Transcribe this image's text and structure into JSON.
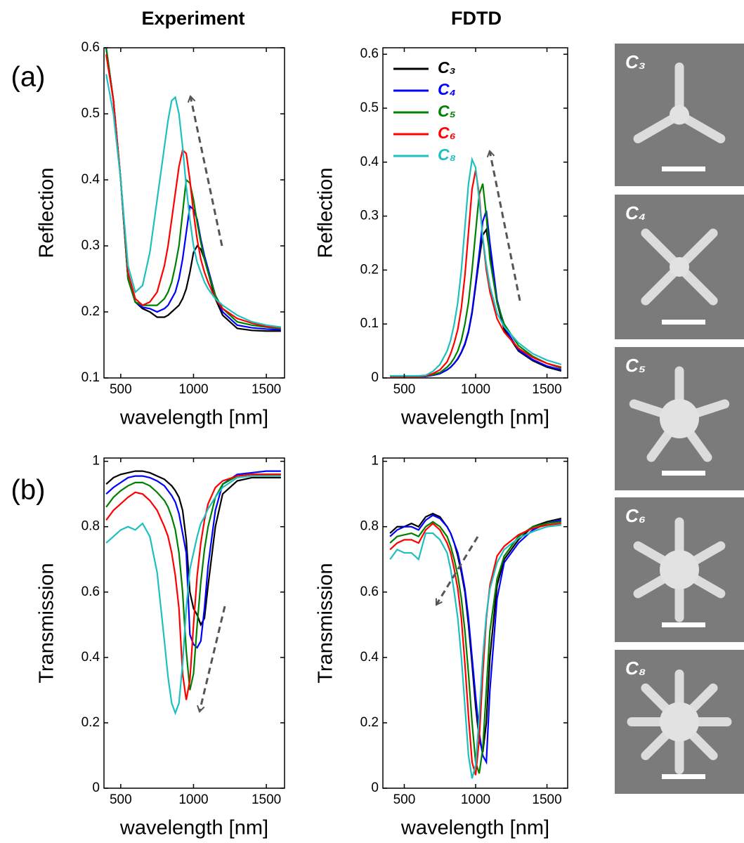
{
  "panel_labels": [
    "(a)",
    "(b)"
  ],
  "images": [
    {
      "label": "C₃"
    },
    {
      "label": "C₄"
    },
    {
      "label": "C₅"
    },
    {
      "label": "C₆"
    },
    {
      "label": "C₈"
    }
  ],
  "chart_data": [
    {
      "type": "line",
      "title": "Experiment",
      "ylabel": "Reflection",
      "xlabel": "wavelength  [nm]",
      "xlim": [
        385,
        1625
      ],
      "xticks": [
        500,
        1000,
        1500
      ],
      "ylim": [
        0.1,
        0.6
      ],
      "yticks": [
        0.1,
        0.2,
        0.3,
        0.4,
        0.5,
        0.6
      ],
      "x": [
        400,
        450,
        500,
        550,
        600,
        650,
        700,
        750,
        800,
        825,
        850,
        875,
        900,
        925,
        950,
        975,
        1000,
        1025,
        1050,
        1075,
        1100,
        1150,
        1200,
        1300,
        1400,
        1500,
        1600
      ],
      "series": [
        {
          "name": "C₃",
          "color": "#000000",
          "values": [
            0.6,
            0.52,
            0.4,
            0.25,
            0.215,
            0.205,
            0.2,
            0.192,
            0.192,
            0.195,
            0.2,
            0.205,
            0.21,
            0.22,
            0.235,
            0.26,
            0.29,
            0.3,
            0.295,
            0.28,
            0.26,
            0.22,
            0.195,
            0.175,
            0.172,
            0.171,
            0.171
          ]
        },
        {
          "name": "C₄",
          "color": "#0000ff",
          "values": [
            0.6,
            0.52,
            0.4,
            0.25,
            0.215,
            0.207,
            0.205,
            0.2,
            0.205,
            0.21,
            0.22,
            0.23,
            0.25,
            0.28,
            0.32,
            0.36,
            0.355,
            0.34,
            0.31,
            0.285,
            0.265,
            0.225,
            0.2,
            0.18,
            0.176,
            0.174,
            0.173
          ]
        },
        {
          "name": "C₅",
          "color": "#008000",
          "values": [
            0.6,
            0.52,
            0.4,
            0.25,
            0.215,
            0.21,
            0.21,
            0.21,
            0.22,
            0.23,
            0.245,
            0.27,
            0.3,
            0.35,
            0.4,
            0.395,
            0.37,
            0.335,
            0.305,
            0.28,
            0.26,
            0.225,
            0.205,
            0.185,
            0.18,
            0.177,
            0.175
          ]
        },
        {
          "name": "C₆",
          "color": "#ff0000",
          "values": [
            0.59,
            0.52,
            0.4,
            0.26,
            0.22,
            0.21,
            0.215,
            0.23,
            0.27,
            0.3,
            0.34,
            0.38,
            0.42,
            0.445,
            0.44,
            0.4,
            0.35,
            0.31,
            0.28,
            0.26,
            0.245,
            0.22,
            0.205,
            0.19,
            0.183,
            0.178,
            0.176
          ]
        },
        {
          "name": "C₈",
          "color": "#1ebfbf",
          "values": [
            0.56,
            0.5,
            0.4,
            0.27,
            0.23,
            0.24,
            0.29,
            0.37,
            0.45,
            0.49,
            0.52,
            0.525,
            0.5,
            0.45,
            0.39,
            0.34,
            0.3,
            0.275,
            0.26,
            0.245,
            0.235,
            0.22,
            0.21,
            0.195,
            0.185,
            0.18,
            0.177
          ]
        }
      ]
    },
    {
      "type": "line",
      "title": "FDTD",
      "ylabel": "Reflection",
      "xlabel": "wavelength  [nm]",
      "legend": "upper left",
      "xlim": [
        350,
        1645
      ],
      "xticks": [
        500,
        1000,
        1500
      ],
      "ylim": [
        0,
        0.612
      ],
      "yticks": [
        0,
        0.1,
        0.2,
        0.3,
        0.4,
        0.5,
        0.6
      ],
      "x": [
        400,
        450,
        500,
        550,
        600,
        650,
        700,
        750,
        800,
        825,
        850,
        875,
        900,
        925,
        950,
        975,
        1000,
        1025,
        1050,
        1075,
        1100,
        1150,
        1200,
        1300,
        1400,
        1500,
        1600
      ],
      "series": [
        {
          "name": "C₃",
          "color": "#000000",
          "values": [
            0.003,
            0.003,
            0.003,
            0.003,
            0.003,
            0.003,
            0.005,
            0.008,
            0.015,
            0.02,
            0.027,
            0.035,
            0.047,
            0.062,
            0.085,
            0.12,
            0.17,
            0.22,
            0.265,
            0.275,
            0.23,
            0.14,
            0.09,
            0.05,
            0.032,
            0.02,
            0.013
          ]
        },
        {
          "name": "C₄",
          "color": "#0000ff",
          "values": [
            0.003,
            0.003,
            0.003,
            0.003,
            0.003,
            0.003,
            0.005,
            0.008,
            0.015,
            0.02,
            0.027,
            0.036,
            0.048,
            0.064,
            0.087,
            0.123,
            0.175,
            0.23,
            0.29,
            0.31,
            0.25,
            0.145,
            0.095,
            0.052,
            0.034,
            0.022,
            0.015
          ]
        },
        {
          "name": "C₅",
          "color": "#008000",
          "values": [
            0.003,
            0.003,
            0.003,
            0.003,
            0.003,
            0.004,
            0.006,
            0.01,
            0.02,
            0.027,
            0.037,
            0.05,
            0.07,
            0.1,
            0.14,
            0.2,
            0.27,
            0.34,
            0.36,
            0.3,
            0.22,
            0.14,
            0.1,
            0.06,
            0.04,
            0.027,
            0.018
          ]
        },
        {
          "name": "C₆",
          "color": "#ff0000",
          "values": [
            0.003,
            0.003,
            0.003,
            0.003,
            0.003,
            0.004,
            0.008,
            0.015,
            0.03,
            0.045,
            0.065,
            0.09,
            0.13,
            0.19,
            0.27,
            0.35,
            0.385,
            0.34,
            0.26,
            0.2,
            0.16,
            0.11,
            0.085,
            0.055,
            0.038,
            0.027,
            0.02
          ]
        },
        {
          "name": "C₈",
          "color": "#1ebfbf",
          "values": [
            0.004,
            0.004,
            0.004,
            0.004,
            0.004,
            0.005,
            0.012,
            0.025,
            0.05,
            0.07,
            0.1,
            0.14,
            0.2,
            0.28,
            0.36,
            0.405,
            0.39,
            0.33,
            0.26,
            0.21,
            0.17,
            0.12,
            0.095,
            0.065,
            0.045,
            0.033,
            0.025
          ]
        }
      ]
    },
    {
      "type": "line",
      "ylabel": "Transmission",
      "xlabel": "wavelength  [nm]",
      "xlim": [
        385,
        1625
      ],
      "xticks": [
        500,
        1000,
        1500
      ],
      "ylim": [
        0,
        1.01
      ],
      "yticks": [
        0,
        0.2,
        0.4,
        0.6,
        0.8,
        1
      ],
      "x": [
        400,
        450,
        500,
        550,
        600,
        650,
        700,
        750,
        800,
        825,
        850,
        875,
        900,
        925,
        950,
        975,
        1000,
        1025,
        1050,
        1075,
        1100,
        1150,
        1200,
        1300,
        1400,
        1500,
        1600
      ],
      "series": [
        {
          "name": "C₃",
          "color": "#000000",
          "values": [
            0.93,
            0.95,
            0.96,
            0.965,
            0.97,
            0.97,
            0.965,
            0.955,
            0.945,
            0.935,
            0.925,
            0.91,
            0.89,
            0.85,
            0.76,
            0.6,
            0.55,
            0.53,
            0.5,
            0.52,
            0.62,
            0.8,
            0.9,
            0.94,
            0.95,
            0.95,
            0.95
          ]
        },
        {
          "name": "C₄",
          "color": "#0000ff",
          "values": [
            0.9,
            0.92,
            0.935,
            0.95,
            0.955,
            0.955,
            0.95,
            0.94,
            0.925,
            0.91,
            0.895,
            0.875,
            0.84,
            0.78,
            0.72,
            0.47,
            0.44,
            0.43,
            0.45,
            0.55,
            0.68,
            0.85,
            0.93,
            0.96,
            0.965,
            0.97,
            0.97
          ]
        },
        {
          "name": "C₅",
          "color": "#008000",
          "values": [
            0.86,
            0.89,
            0.91,
            0.925,
            0.935,
            0.935,
            0.925,
            0.905,
            0.88,
            0.86,
            0.83,
            0.79,
            0.72,
            0.6,
            0.42,
            0.3,
            0.35,
            0.5,
            0.63,
            0.73,
            0.8,
            0.89,
            0.93,
            0.955,
            0.96,
            0.96,
            0.96
          ]
        },
        {
          "name": "C₆",
          "color": "#ff0000",
          "values": [
            0.82,
            0.85,
            0.87,
            0.89,
            0.905,
            0.9,
            0.88,
            0.85,
            0.8,
            0.77,
            0.72,
            0.65,
            0.55,
            0.35,
            0.27,
            0.33,
            0.5,
            0.65,
            0.75,
            0.82,
            0.87,
            0.92,
            0.94,
            0.955,
            0.96,
            0.96,
            0.96
          ]
        },
        {
          "name": "C₈",
          "color": "#1ebfbf",
          "values": [
            0.75,
            0.77,
            0.79,
            0.8,
            0.79,
            0.81,
            0.77,
            0.66,
            0.45,
            0.34,
            0.26,
            0.23,
            0.26,
            0.38,
            0.55,
            0.67,
            0.72,
            0.77,
            0.81,
            0.83,
            0.855,
            0.89,
            0.92,
            0.95,
            0.955,
            0.955,
            0.955
          ]
        }
      ]
    },
    {
      "type": "line",
      "ylabel": "Transmission",
      "xlabel": "wavelength  [nm]",
      "xlim": [
        350,
        1645
      ],
      "xticks": [
        500,
        1000,
        1500
      ],
      "ylim": [
        0,
        1.01
      ],
      "yticks": [
        0,
        0.2,
        0.4,
        0.6,
        0.8,
        1
      ],
      "x": [
        400,
        450,
        500,
        550,
        600,
        650,
        700,
        750,
        800,
        825,
        850,
        875,
        900,
        925,
        950,
        975,
        1000,
        1025,
        1050,
        1075,
        1100,
        1150,
        1200,
        1300,
        1400,
        1500,
        1600
      ],
      "series": [
        {
          "name": "C₃",
          "color": "#000000",
          "values": [
            0.78,
            0.8,
            0.8,
            0.81,
            0.8,
            0.83,
            0.84,
            0.83,
            0.8,
            0.78,
            0.75,
            0.71,
            0.66,
            0.6,
            0.5,
            0.38,
            0.25,
            0.15,
            0.11,
            0.2,
            0.4,
            0.62,
            0.7,
            0.76,
            0.8,
            0.815,
            0.825
          ]
        },
        {
          "name": "C₄",
          "color": "#0000ff",
          "values": [
            0.77,
            0.79,
            0.8,
            0.8,
            0.79,
            0.82,
            0.835,
            0.825,
            0.8,
            0.78,
            0.75,
            0.72,
            0.67,
            0.61,
            0.52,
            0.4,
            0.28,
            0.17,
            0.1,
            0.08,
            0.3,
            0.58,
            0.69,
            0.75,
            0.79,
            0.81,
            0.82
          ]
        },
        {
          "name": "C₅",
          "color": "#008000",
          "values": [
            0.75,
            0.77,
            0.775,
            0.78,
            0.77,
            0.8,
            0.815,
            0.8,
            0.77,
            0.74,
            0.7,
            0.65,
            0.58,
            0.48,
            0.35,
            0.2,
            0.08,
            0.045,
            0.12,
            0.3,
            0.48,
            0.64,
            0.71,
            0.77,
            0.8,
            0.81,
            0.815
          ]
        },
        {
          "name": "C₆",
          "color": "#ff0000",
          "values": [
            0.73,
            0.75,
            0.76,
            0.76,
            0.75,
            0.79,
            0.81,
            0.79,
            0.75,
            0.72,
            0.67,
            0.61,
            0.52,
            0.38,
            0.22,
            0.08,
            0.04,
            0.15,
            0.35,
            0.52,
            0.62,
            0.71,
            0.74,
            0.775,
            0.795,
            0.805,
            0.81
          ]
        },
        {
          "name": "C₈",
          "color": "#1ebfbf",
          "values": [
            0.7,
            0.73,
            0.72,
            0.72,
            0.7,
            0.78,
            0.78,
            0.76,
            0.72,
            0.67,
            0.6,
            0.52,
            0.4,
            0.25,
            0.1,
            0.03,
            0.07,
            0.22,
            0.4,
            0.53,
            0.61,
            0.69,
            0.73,
            0.765,
            0.785,
            0.8,
            0.805
          ]
        }
      ]
    }
  ]
}
